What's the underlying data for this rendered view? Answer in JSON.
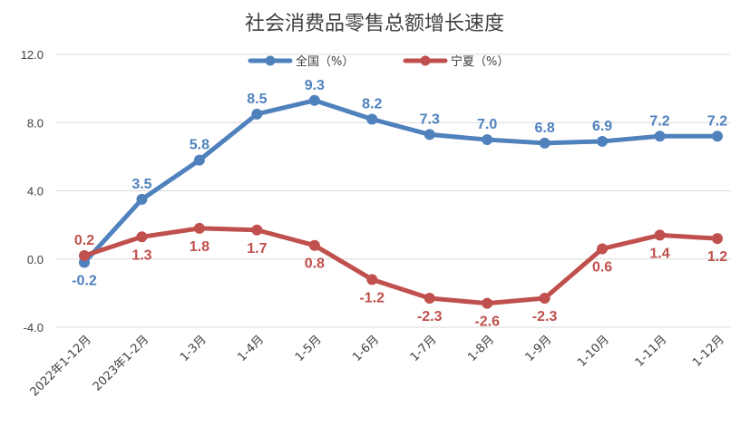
{
  "chart_data": {
    "type": "line",
    "title": "社会消费品零售总额增长速度",
    "xlabel": "",
    "ylabel": "",
    "categories": [
      "2022年1-12月",
      "2023年1-2月",
      "1-3月",
      "1-4月",
      "1-5月",
      "1-6月",
      "1-7月",
      "1-8月",
      "1-9月",
      "1-10月",
      "1-11月",
      "1-12月"
    ],
    "ylim": [
      -4.0,
      12.0
    ],
    "yticks": [
      "12.0",
      "8.0",
      "4.0",
      "0.0",
      "-4.0"
    ],
    "ytick_values": [
      12,
      8,
      4,
      0,
      -4
    ],
    "grid": true,
    "legend_position": "top",
    "series": [
      {
        "name": "全国（%）",
        "color": "#4F81BD",
        "values": [
          -0.2,
          3.5,
          5.8,
          8.5,
          9.3,
          8.2,
          7.3,
          7.0,
          6.8,
          6.9,
          7.2,
          7.2
        ],
        "labels": [
          "-0.2",
          "3.5",
          "5.8",
          "8.5",
          "9.3",
          "8.2",
          "7.3",
          "7.0",
          "6.8",
          "6.9",
          "7.2",
          "7.2"
        ]
      },
      {
        "name": "宁夏（%）",
        "color": "#C0504D",
        "values": [
          0.2,
          1.3,
          1.8,
          1.7,
          0.8,
          -1.2,
          -2.3,
          -2.6,
          -2.3,
          0.6,
          1.4,
          1.2
        ],
        "labels": [
          "0.2",
          "1.3",
          "1.8",
          "1.7",
          "0.8",
          "-1.2",
          "-2.3",
          "-2.6",
          "-2.3",
          "0.6",
          "1.4",
          "1.2"
        ]
      }
    ]
  }
}
